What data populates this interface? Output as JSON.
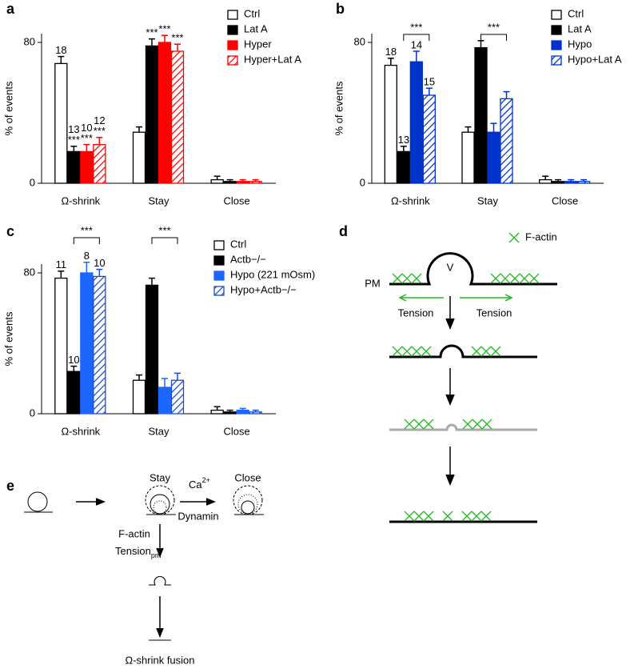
{
  "chart_data": [
    {
      "type": "bar",
      "panel": "a",
      "ylabel": "% of events",
      "categories": [
        "Ω-shrink",
        "Stay",
        "Close"
      ],
      "ylim": [
        0,
        85
      ],
      "yticks": [
        0,
        80
      ],
      "series": [
        {
          "name": "Ctrl",
          "color": "#000000",
          "hatch": false,
          "hollow": true,
          "values": [
            68,
            29,
            2
          ],
          "errors": [
            4,
            3,
            2
          ],
          "n": [
            18,
            null,
            null
          ],
          "significance": [
            null,
            null,
            null
          ]
        },
        {
          "name": "Lat A",
          "color": "#000000",
          "hatch": false,
          "hollow": false,
          "values": [
            18,
            78,
            1
          ],
          "errors": [
            3,
            4,
            1
          ],
          "n": [
            13,
            null,
            null
          ],
          "significance": [
            "***",
            "***",
            null
          ]
        },
        {
          "name": "Hyper",
          "color": "#ff0000",
          "hatch": false,
          "hollow": false,
          "values": [
            18,
            80,
            1
          ],
          "errors": [
            4,
            4,
            1
          ],
          "n": [
            10,
            null,
            null
          ],
          "significance": [
            "***",
            "***",
            null
          ]
        },
        {
          "name": "Hyper+Lat A",
          "color": "#ff0000",
          "hatch": true,
          "hollow": false,
          "values": [
            22,
            75,
            1
          ],
          "errors": [
            4,
            4,
            1
          ],
          "n": [
            12,
            null,
            null
          ],
          "significance": [
            "***",
            "***",
            null
          ]
        }
      ],
      "brackets": []
    },
    {
      "type": "bar",
      "panel": "b",
      "ylabel": "% of events",
      "categories": [
        "Ω-shrink",
        "Stay",
        "Close"
      ],
      "ylim": [
        0,
        85
      ],
      "yticks": [
        0,
        80
      ],
      "series": [
        {
          "name": "Ctrl",
          "color": "#000000",
          "hatch": false,
          "hollow": true,
          "values": [
            67,
            29,
            2
          ],
          "errors": [
            4,
            3,
            2
          ],
          "n": [
            18,
            null,
            null
          ],
          "significance": [
            null,
            null,
            null
          ]
        },
        {
          "name": "Lat A",
          "color": "#000000",
          "hatch": false,
          "hollow": false,
          "values": [
            18,
            77,
            1
          ],
          "errors": [
            3,
            4,
            1
          ],
          "n": [
            13,
            null,
            null
          ],
          "significance": [
            null,
            null,
            null
          ]
        },
        {
          "name": "Hypo",
          "color": "#0033cc",
          "hatch": false,
          "hollow": false,
          "values": [
            69,
            29,
            1
          ],
          "errors": [
            6,
            5,
            1
          ],
          "n": [
            14,
            null,
            null
          ],
          "significance": [
            null,
            null,
            null
          ]
        },
        {
          "name": "Hypo+Lat A",
          "color": "#0033cc",
          "hatch": true,
          "hollow": false,
          "values": [
            50,
            48,
            1
          ],
          "errors": [
            4,
            4,
            1
          ],
          "n": [
            15,
            null,
            null
          ],
          "significance": [
            null,
            null,
            null
          ]
        }
      ],
      "brackets": [
        {
          "category": 0,
          "from": 1,
          "to": 3,
          "label": "***"
        },
        {
          "category": 1,
          "from": 1,
          "to": 3,
          "label": "***"
        }
      ]
    },
    {
      "type": "bar",
      "panel": "c",
      "ylabel": "% of events",
      "categories": [
        "Ω-shrink",
        "Stay",
        "Close"
      ],
      "ylim": [
        0,
        85
      ],
      "yticks": [
        0,
        80
      ],
      "series": [
        {
          "name": "Ctrl",
          "color": "#000000",
          "hatch": false,
          "hollow": true,
          "values": [
            77,
            19,
            2
          ],
          "errors": [
            4,
            3,
            2
          ],
          "n": [
            11,
            null,
            null
          ],
          "significance": [
            null,
            null,
            null
          ]
        },
        {
          "name": "Actb−/−",
          "color": "#000000",
          "hatch": false,
          "hollow": false,
          "values": [
            24,
            73,
            1
          ],
          "errors": [
            3,
            4,
            1
          ],
          "n": [
            10,
            null,
            null
          ],
          "significance": [
            null,
            null,
            null
          ]
        },
        {
          "name": "Hypo (221 mOsm)",
          "color": "#1a66ff",
          "hatch": false,
          "hollow": false,
          "values": [
            80,
            15,
            2
          ],
          "errors": [
            6,
            5,
            1
          ],
          "n": [
            8,
            null,
            null
          ],
          "significance": [
            null,
            null,
            null
          ]
        },
        {
          "name": "Hypo+Actb−/−",
          "color": "#1a4dcc",
          "hatch": true,
          "hollow": false,
          "values": [
            78,
            19,
            1
          ],
          "errors": [
            4,
            4,
            1
          ],
          "n": [
            10,
            null,
            null
          ],
          "significance": [
            null,
            null,
            null
          ]
        }
      ],
      "brackets": [
        {
          "category": 0,
          "from": 1,
          "to": 3,
          "label": "***"
        },
        {
          "category": 1,
          "from": 1,
          "to": 3,
          "label": "***"
        }
      ]
    }
  ],
  "diagram_d": {
    "panel": "d",
    "legend": "F-actin",
    "membrane": "PM",
    "vesicle": "V",
    "tension_left": "Tension",
    "tension_right": "Tension"
  },
  "diagram_e": {
    "panel": "e",
    "stay": "Stay",
    "close": "Close",
    "ca": "Ca",
    "ca_charge": "2+",
    "dynamin": "Dynamin",
    "factin": "F-actin",
    "tension": "Tension",
    "tension_sub": "pm",
    "fusion": "Ω-shrink fusion"
  }
}
